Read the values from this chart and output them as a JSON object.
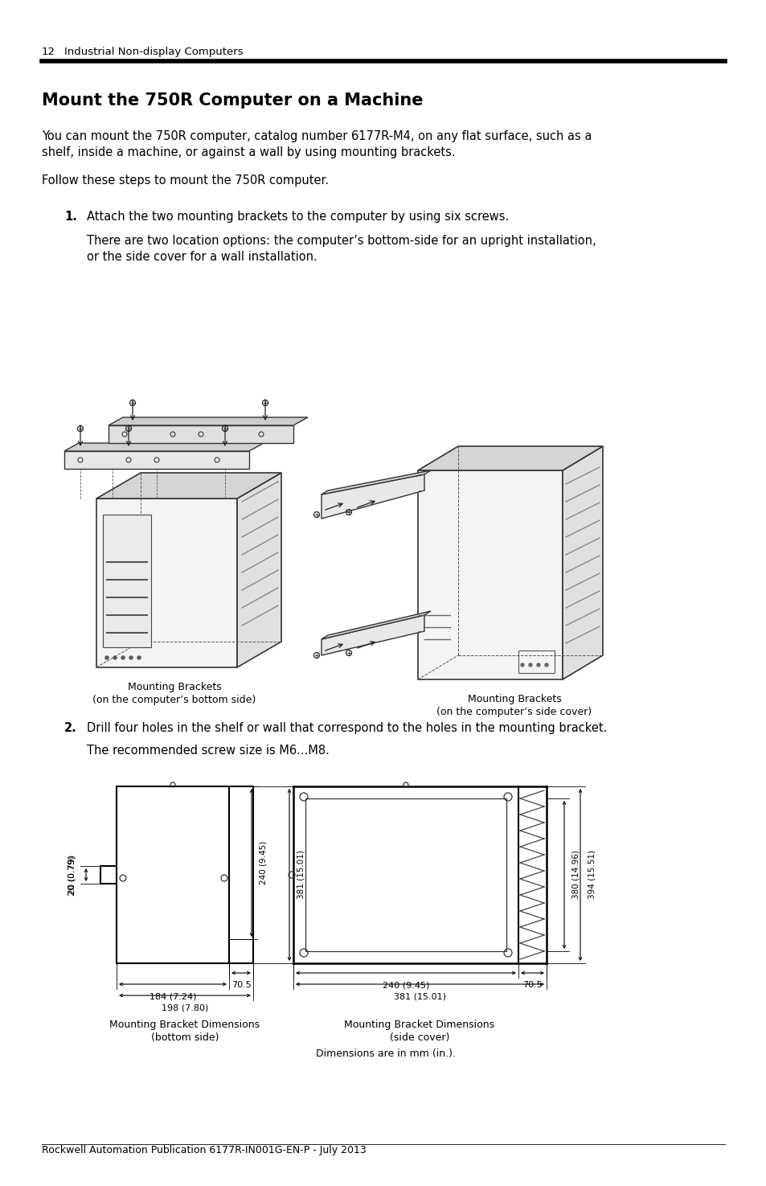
{
  "page_number": "12",
  "header_text": "Industrial Non-display Computers",
  "title": "Mount the 750R Computer on a Machine",
  "para1_line1": "You can mount the 750R computer, catalog number 6177R-M4, on any flat surface, such as a",
  "para1_line2": "shelf, inside a machine, or against a wall by using mounting brackets.",
  "para2": "Follow these steps to mount the 750R computer.",
  "step1_num": "1.",
  "step1_text": "Attach the two mounting brackets to the computer by using six screws.",
  "step1_sub1": "There are two location options: the computer’s bottom-side for an upright installation,",
  "step1_sub2": "or the side cover for a wall installation.",
  "caption1a": "Mounting Brackets",
  "caption1b": "(on the computer’s bottom side)",
  "caption2a": "Mounting Brackets",
  "caption2b": "(on the computer’s side cover)",
  "step2_num": "2.",
  "step2_text": "Drill four holes in the shelf or wall that correspond to the holes in the mounting bracket.",
  "step2_sub": "The recommended screw size is M6...M8.",
  "caption3a": "Mounting Bracket Dimensions",
  "caption3b": "(bottom side)",
  "caption4a": "Mounting Bracket Dimensions",
  "caption4b": "(side cover)",
  "caption5": "Dimensions are in mm (in.).",
  "footer": "Rockwell Automation Publication 6177R-IN001G-EN-P - July 2013",
  "bg_color": "#ffffff"
}
